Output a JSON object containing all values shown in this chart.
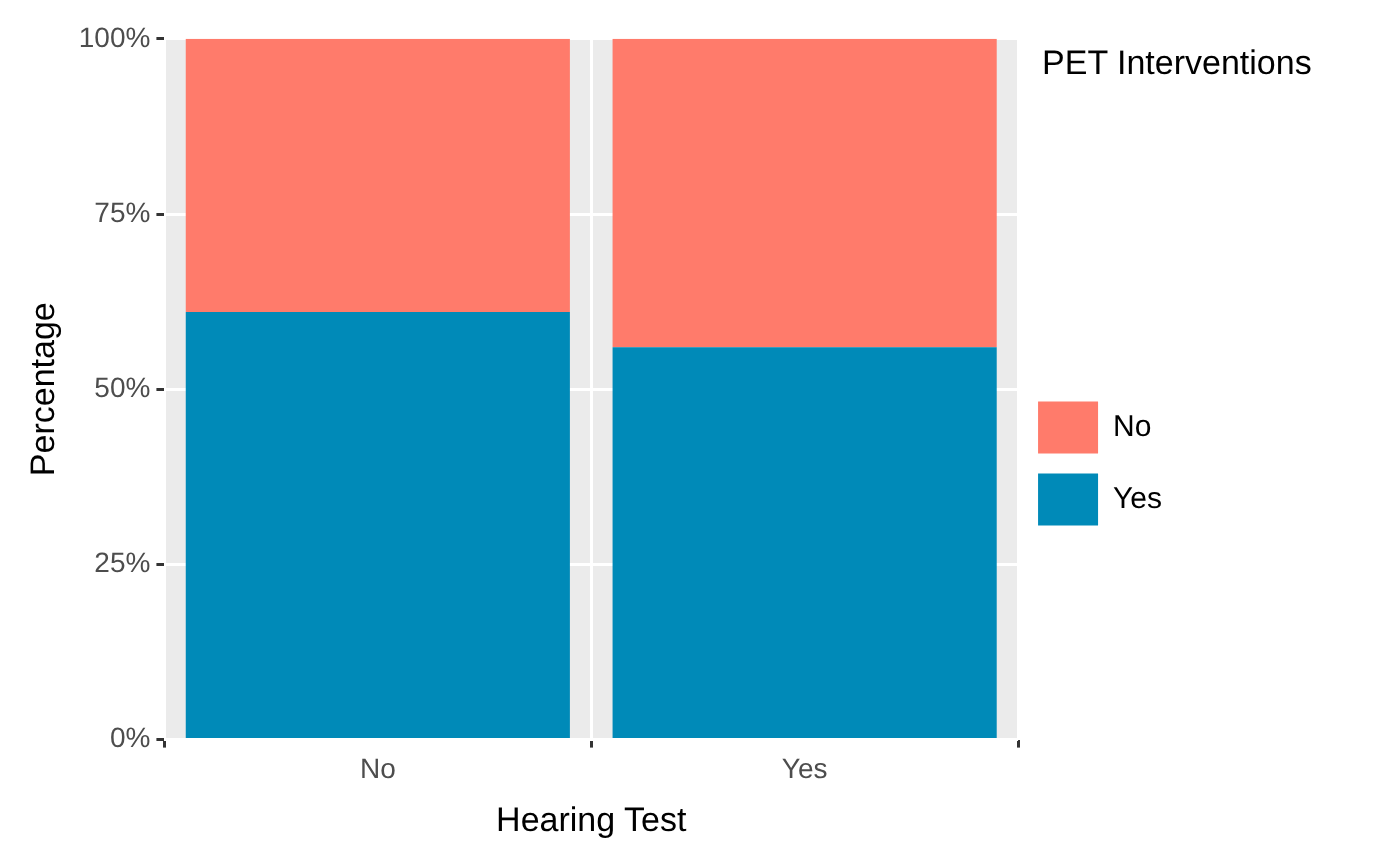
{
  "chart_data": {
    "type": "bar",
    "xlabel": "Hearing Test",
    "ylabel": "Percentage",
    "legend_title": "PET Interventions",
    "categories": [
      "No",
      "Yes"
    ],
    "series": [
      {
        "name": "Yes",
        "color": "#008ab8",
        "values": [
          61,
          56
        ]
      },
      {
        "name": "No",
        "color": "#ff7b6b",
        "values": [
          39,
          44
        ]
      }
    ],
    "stacked": true,
    "ylim": [
      0,
      100
    ],
    "yticks": [
      {
        "value": 0,
        "label": "0%"
      },
      {
        "value": 25,
        "label": "25%"
      },
      {
        "value": 50,
        "label": "50%"
      },
      {
        "value": 75,
        "label": "75%"
      },
      {
        "value": 100,
        "label": "100%"
      }
    ],
    "grid": true,
    "legend": "right"
  }
}
